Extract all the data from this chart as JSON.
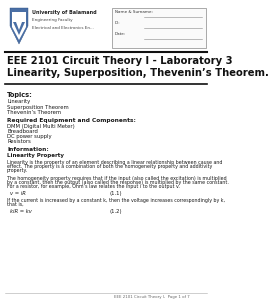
{
  "title_line1": "EEE 2101 Circuit Theory I - Laboratory 3",
  "title_line2": "Linearity, Superposition, Thevenin’s Theorem.",
  "university_name": "University of Balamand",
  "faculty": "Engineering Faculty",
  "department": "Electrical and Electronics En...",
  "form_labels": [
    "Name & Surname:",
    "ID:",
    "Date:"
  ],
  "topics_header": "Topics:",
  "topics": [
    "Linearity",
    "Superposition Theorem",
    "Thevenin’s Theorem"
  ],
  "equipment_header": "Required Equipment and Components:",
  "equipment": [
    "DMM (Digital Multi Meter)",
    "Breadboard",
    "DC power supply",
    "Resistors"
  ],
  "info_header": "Information:",
  "linearity_header": "Linearity Property",
  "linearity_para1_lines": [
    "Linearity is the property of an element describing a linear relationship between cause and",
    "effect. The property is a combination of both the homogeneity property and additivity",
    "property."
  ],
  "linearity_para2_lines": [
    "The homogeneity property requires that if the input (also called the excitation) is multiplied",
    "by a constant, then the output (also called the response) is multiplied by the same constant.",
    "For a resistor, for example, Ohm’s law relates the input i to the output v."
  ],
  "eq1_left": "v = iR",
  "eq1_right": "(1.1)",
  "linearity_para3_lines": [
    "If the current is increased by a constant k, then the voltage increases correspondingly by k,",
    "that is,"
  ],
  "eq2_left": "kiR = kv",
  "eq2_right": "(1.2)",
  "footer": "EEE 2101 Circuit Theory I,  Page 1 of 7",
  "bg_color": "#ffffff",
  "text_color": "#1a1a1a",
  "gray_text": "#555555"
}
